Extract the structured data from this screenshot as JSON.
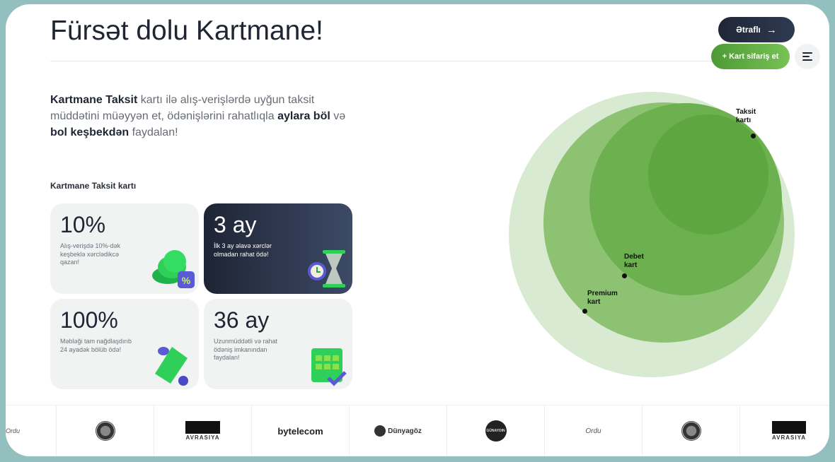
{
  "header": {
    "title": "Fürsət dolu Kartmane!",
    "more_label": "Ətraflı",
    "more_icon": "arrow-right-icon",
    "order_label": "+ Kart sifariş et",
    "menu_icon": "menu-icon"
  },
  "intro": {
    "p1": "Kartmane Taksit",
    "p2": " kartı ilə alış-verişlərdə uyğun taksit müddətini müəyyən et, ödənişlərini rahatlıqla ",
    "p3": "aylara böl",
    "p4": " və ",
    "p5": "bol keşbekdən",
    "p6": " faydalan!"
  },
  "section_title": "Kartmane Taksit kartı",
  "cards": [
    {
      "value": "10%",
      "desc": "Alış-verişdə 10%-dək keşbeklə xərclədikcə qazan!",
      "icon": "cashback-coins-icon"
    },
    {
      "value": "3 ay",
      "desc": "İlk 3 ay əlavə xərclər olmadan rahat ödə!",
      "icon": "hourglass-icon"
    },
    {
      "value": "100%",
      "desc": "Məbləği tam nağdlaşdırıb 24 ayadək bölüb ödə!",
      "icon": "cash-icon"
    },
    {
      "value": "36 ay",
      "desc": "Uzunmüddətli və rahat ödəniş imkanından faydalan!",
      "icon": "calendar-check-icon"
    }
  ],
  "diagram": {
    "labels": [
      "Taksit kartı",
      "Debet kart",
      "Premium kart"
    ],
    "colors": [
      "#d9ead2",
      "#8dc273",
      "#6cb04f",
      "#5ea63f"
    ]
  },
  "logos": [
    "Ordu",
    "Yin-yang",
    "AVRASIYA",
    "bytelecom",
    "Dünyagöz",
    "GÜNAYDIN",
    "Ordu",
    "Yin-yang",
    "AVRASIYA"
  ]
}
